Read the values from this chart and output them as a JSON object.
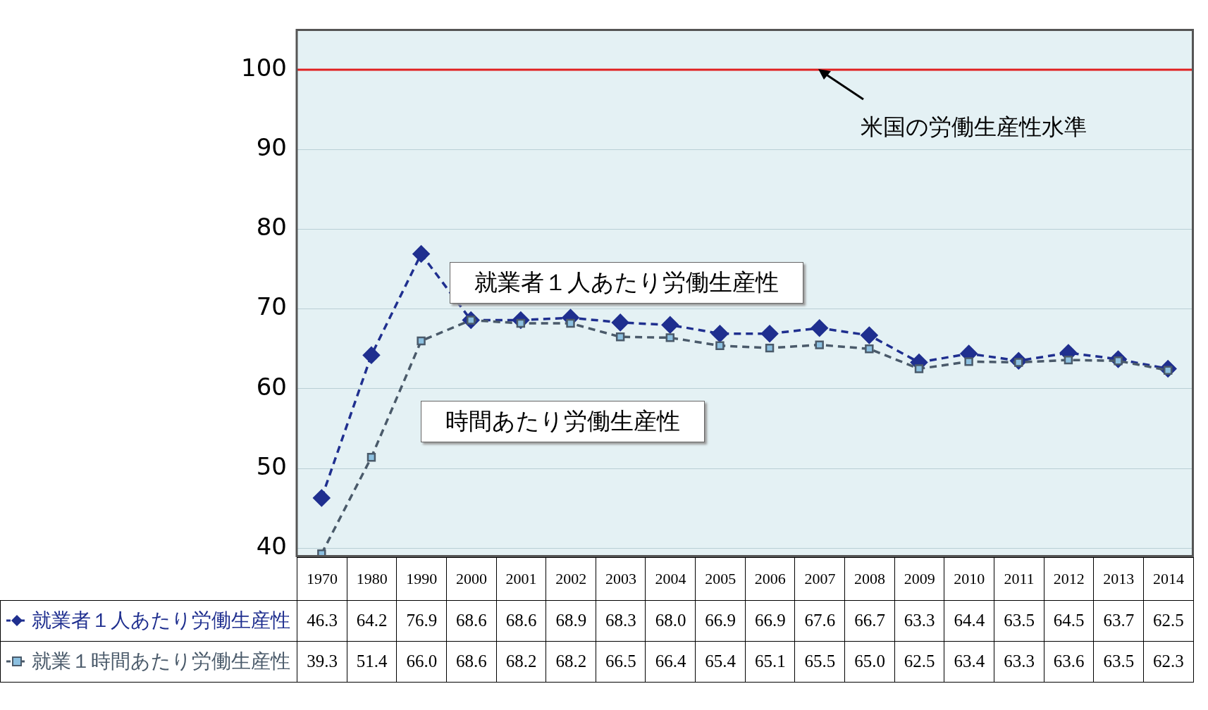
{
  "chart_data": {
    "type": "line",
    "categories": [
      "1970",
      "1980",
      "1990",
      "2000",
      "2001",
      "2002",
      "2003",
      "2004",
      "2005",
      "2006",
      "2007",
      "2008",
      "2009",
      "2010",
      "2011",
      "2012",
      "2013",
      "2014"
    ],
    "series": [
      {
        "name": "就業者１人あたり労働生産性",
        "color": "#1f2f8f",
        "marker": "diamond",
        "line_style": "dashed",
        "values": [
          46.3,
          64.2,
          76.9,
          68.6,
          68.6,
          68.9,
          68.3,
          68.0,
          66.9,
          66.9,
          67.6,
          66.7,
          63.3,
          64.4,
          63.5,
          64.5,
          63.7,
          62.5
        ],
        "value_labels": [
          "46.3",
          "64.2",
          "76.9",
          "68.6",
          "68.6",
          "68.9",
          "68.3",
          "68.0",
          "66.9",
          "66.9",
          "67.6",
          "66.7",
          "63.3",
          "64.4",
          "63.5",
          "64.5",
          "63.7",
          "62.5"
        ]
      },
      {
        "name": "就業１時間あたり労働生産性",
        "color": "#4a5a6a",
        "marker": "square",
        "line_style": "dashed",
        "values": [
          39.3,
          51.4,
          66.0,
          68.6,
          68.2,
          68.2,
          66.5,
          66.4,
          65.4,
          65.1,
          65.5,
          65.0,
          62.5,
          63.4,
          63.3,
          63.6,
          63.5,
          62.3
        ],
        "value_labels": [
          "39.3",
          "51.4",
          "66.0",
          "68.6",
          "68.2",
          "68.2",
          "66.5",
          "66.4",
          "65.4",
          "65.1",
          "65.5",
          "65.0",
          "62.5",
          "63.4",
          "63.3",
          "63.6",
          "63.5",
          "62.3"
        ]
      }
    ],
    "ylim": [
      39,
      105
    ],
    "yticks": [
      40,
      50,
      60,
      70,
      80,
      90,
      100
    ],
    "grid": "y",
    "tick_labels": "y",
    "legend": "bottom left",
    "ref_lines": [
      {
        "axis": "y",
        "value": 100,
        "label": "米国の労働生産性水準",
        "color": "#e02020"
      }
    ],
    "annotations": [
      "就業者１人あたり労働生産性",
      "時間あたり労働生産性"
    ]
  }
}
